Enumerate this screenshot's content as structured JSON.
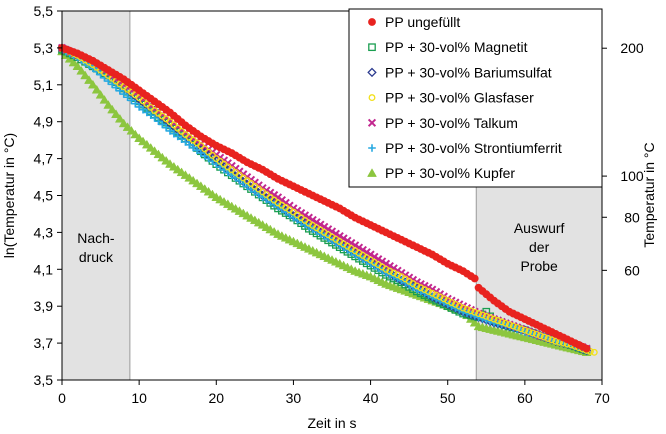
{
  "chart_data": {
    "type": "scatter",
    "xlabel": "Zeit in s",
    "ylabel": "ln(Temperatur in °C)",
    "y2label": "Temperatur in °C",
    "xlim": [
      0,
      70
    ],
    "ylim": [
      3.5,
      5.5
    ],
    "x_ticks": [
      0,
      10,
      20,
      30,
      40,
      50,
      60,
      70
    ],
    "y_ticks": [
      3.5,
      3.7,
      3.9,
      4.1,
      4.3,
      4.5,
      4.7,
      4.9,
      5.1,
      5.3,
      5.5
    ],
    "y_tick_labels": [
      "3,5",
      "3,7",
      "3,9",
      "4,1",
      "4,3",
      "4,5",
      "4,7",
      "4,9",
      "5,1",
      "5,3",
      "5,5"
    ],
    "y2_ticks": [
      {
        "value": 60,
        "label": "60"
      },
      {
        "value": 80,
        "label": "80"
      },
      {
        "value": 100,
        "label": "100"
      },
      {
        "value": 200,
        "label": "200"
      }
    ],
    "y2_scale": "log",
    "grid": false,
    "legend_position": "top-right",
    "shaded_regions": [
      {
        "x": [
          0,
          8.8
        ],
        "color": "#e2e2e2",
        "label": "Nach-\ndruck"
      },
      {
        "x": [
          53.7,
          70
        ],
        "color": "#e2e2e2",
        "label": "Auswurf\nder\nProbe"
      }
    ],
    "series": [
      {
        "name": "PP ungefüllt",
        "marker": "circle",
        "color": "#e8231f",
        "x": [
          0,
          2,
          4,
          6,
          8,
          10,
          12,
          14,
          16,
          18,
          20,
          22,
          24,
          26,
          28,
          30,
          32,
          34,
          36,
          38,
          40,
          42,
          44,
          46,
          48,
          50,
          52,
          53.5,
          54,
          56,
          58,
          60,
          62,
          64,
          66,
          68
        ],
        "y": [
          5.3,
          5.27,
          5.23,
          5.18,
          5.13,
          5.07,
          5.01,
          4.95,
          4.88,
          4.82,
          4.77,
          4.73,
          4.68,
          4.64,
          4.59,
          4.55,
          4.51,
          4.47,
          4.43,
          4.38,
          4.34,
          4.3,
          4.26,
          4.22,
          4.18,
          4.13,
          4.09,
          4.05,
          4.0,
          3.93,
          3.87,
          3.83,
          3.79,
          3.75,
          3.71,
          3.67
        ]
      },
      {
        "name": "PP + 30-vol% Magnetit",
        "marker": "square",
        "color": "#1a9e50",
        "x": [
          0,
          2,
          4,
          6,
          8,
          10,
          12,
          14,
          16,
          18,
          20,
          22,
          24,
          26,
          28,
          30,
          32,
          34,
          36,
          38,
          40,
          42,
          44,
          46,
          48,
          50,
          52,
          54,
          55,
          56,
          58,
          60,
          62,
          64,
          66,
          68
        ],
        "y": [
          5.29,
          5.25,
          5.2,
          5.15,
          5.08,
          5.01,
          4.94,
          4.88,
          4.81,
          4.74,
          4.67,
          4.61,
          4.55,
          4.49,
          4.43,
          4.38,
          4.32,
          4.27,
          4.22,
          4.17,
          4.12,
          4.07,
          4.03,
          3.98,
          3.94,
          3.9,
          3.86,
          3.84,
          3.87,
          3.82,
          3.79,
          3.77,
          3.74,
          3.72,
          3.69,
          3.66
        ]
      },
      {
        "name": "PP + 30-vol% Bariumsulfat",
        "marker": "diamond",
        "color": "#2b3a8f",
        "x": [
          0,
          2,
          4,
          6,
          8,
          10,
          12,
          14,
          16,
          18,
          20,
          22,
          24,
          26,
          28,
          30,
          32,
          34,
          36,
          38,
          40,
          42,
          44,
          46,
          48,
          50,
          52,
          54,
          56,
          58,
          60,
          62,
          64,
          66,
          68
        ],
        "y": [
          5.3,
          5.26,
          5.21,
          5.15,
          5.09,
          5.02,
          4.96,
          4.89,
          4.82,
          4.75,
          4.69,
          4.62,
          4.56,
          4.5,
          4.45,
          4.39,
          4.34,
          4.29,
          4.24,
          4.19,
          4.14,
          4.09,
          4.04,
          4.0,
          3.95,
          3.91,
          3.87,
          3.84,
          3.81,
          3.79,
          3.77,
          3.74,
          3.71,
          3.69,
          3.66
        ]
      },
      {
        "name": "PP + 30-vol% Glasfaser",
        "marker": "circle-open",
        "color": "#f2e01a",
        "x": [
          0,
          2,
          4,
          6,
          8,
          10,
          12,
          14,
          16,
          18,
          20,
          22,
          24,
          26,
          28,
          30,
          32,
          34,
          36,
          38,
          40,
          42,
          44,
          46,
          48,
          50,
          52,
          54,
          56,
          58,
          60,
          62,
          64,
          66,
          68,
          69
        ],
        "y": [
          5.3,
          5.26,
          5.21,
          5.15,
          5.09,
          5.03,
          4.96,
          4.9,
          4.83,
          4.77,
          4.7,
          4.64,
          4.58,
          4.52,
          4.46,
          4.41,
          4.35,
          4.3,
          4.25,
          4.2,
          4.15,
          4.1,
          4.06,
          4.01,
          3.97,
          3.93,
          3.89,
          3.86,
          3.83,
          3.8,
          3.77,
          3.74,
          3.71,
          3.69,
          3.66,
          3.65
        ]
      },
      {
        "name": "PP + 30-vol% Talkum",
        "marker": "x",
        "color": "#c2278f",
        "x": [
          0,
          2,
          4,
          6,
          8,
          10,
          12,
          14,
          16,
          18,
          20,
          22,
          24,
          26,
          28,
          30,
          32,
          34,
          36,
          38,
          40,
          42,
          44,
          46,
          48,
          50,
          52,
          54,
          56,
          58,
          60,
          62,
          64,
          66,
          68
        ],
        "y": [
          5.3,
          5.26,
          5.22,
          5.16,
          5.1,
          5.04,
          4.97,
          4.91,
          4.84,
          4.78,
          4.72,
          4.66,
          4.6,
          4.54,
          4.49,
          4.43,
          4.38,
          4.33,
          4.28,
          4.23,
          4.18,
          4.13,
          4.08,
          4.03,
          3.99,
          3.94,
          3.9,
          3.86,
          3.83,
          3.8,
          3.77,
          3.74,
          3.72,
          3.7,
          3.67
        ]
      },
      {
        "name": "PP + 30-vol% Strontiumferrit",
        "marker": "plus",
        "color": "#27a9e1",
        "x": [
          0,
          2,
          4,
          6,
          8,
          10,
          12,
          14,
          16,
          18,
          20,
          22,
          24,
          26,
          28,
          30,
          32,
          34,
          36,
          38,
          40,
          42,
          44,
          46,
          48,
          50,
          52,
          54,
          56,
          58,
          60,
          62,
          64,
          66,
          68
        ],
        "y": [
          5.29,
          5.25,
          5.19,
          5.12,
          5.05,
          4.98,
          4.92,
          4.85,
          4.79,
          4.73,
          4.67,
          4.61,
          4.55,
          4.49,
          4.44,
          4.38,
          4.33,
          4.28,
          4.23,
          4.18,
          4.13,
          4.08,
          4.04,
          3.99,
          3.95,
          3.91,
          3.87,
          3.84,
          3.81,
          3.79,
          3.76,
          3.74,
          3.71,
          3.69,
          3.66
        ]
      },
      {
        "name": "PP + 30-vol% Kupfer",
        "marker": "triangle",
        "color": "#8cc63f",
        "x": [
          0,
          2,
          4,
          6,
          8,
          10,
          12,
          14,
          16,
          18,
          20,
          22,
          24,
          26,
          28,
          30,
          32,
          34,
          36,
          38,
          40,
          42,
          44,
          46,
          48,
          50,
          52,
          54,
          56,
          58,
          60,
          62,
          64,
          66,
          68
        ],
        "y": [
          5.28,
          5.2,
          5.1,
          4.99,
          4.89,
          4.81,
          4.74,
          4.67,
          4.61,
          4.55,
          4.49,
          4.44,
          4.39,
          4.34,
          4.29,
          4.25,
          4.21,
          4.17,
          4.13,
          4.09,
          4.06,
          4.02,
          3.99,
          3.96,
          3.93,
          3.9,
          3.87,
          3.79,
          3.77,
          3.75,
          3.73,
          3.71,
          3.69,
          3.67,
          3.65
        ]
      }
    ]
  }
}
